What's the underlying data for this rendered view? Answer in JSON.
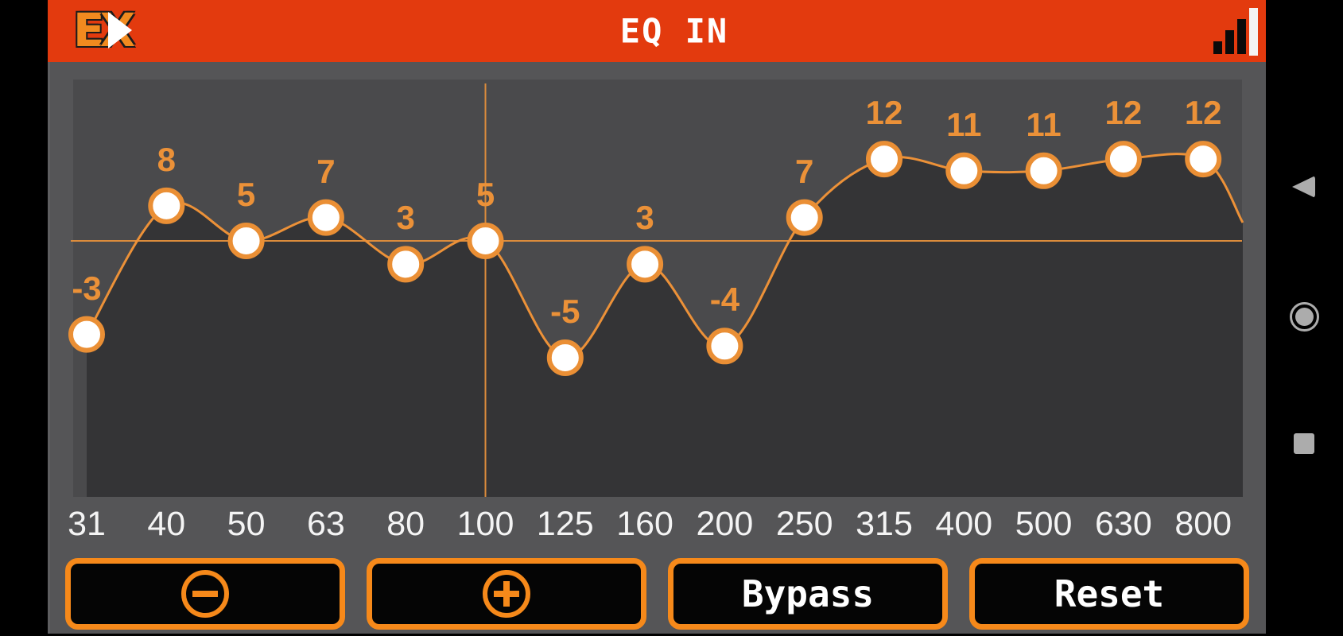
{
  "header": {
    "title": "EQ IN",
    "logo": {
      "left": "E",
      "right": "X"
    }
  },
  "chart_data": {
    "type": "line",
    "title": "EQ IN",
    "categories": [
      "31",
      "40",
      "50",
      "63",
      "80",
      "100",
      "125",
      "160",
      "200",
      "250",
      "315",
      "400",
      "500",
      "630",
      "800"
    ],
    "values": [
      -3,
      8,
      5,
      7,
      3,
      5,
      -5,
      3,
      -4,
      7,
      12,
      11,
      11,
      12,
      12
    ],
    "point_labels": [
      "-3",
      "8",
      "5",
      "7",
      "3",
      "5",
      "-5",
      "3",
      "-4",
      "7",
      "12",
      "11",
      "11",
      "12",
      "12"
    ],
    "selected_band": {
      "category": "100",
      "value": 5
    },
    "xlabel": "",
    "ylabel": "",
    "legend": "none",
    "grid": "off"
  },
  "controls": {
    "decrease_icon": "minus-circle-icon",
    "increase_icon": "plus-circle-icon",
    "bypass_label": "Bypass",
    "reset_label": "Reset"
  },
  "nav": {
    "back": "back-triangle-icon",
    "home": "home-circle-icon",
    "recents": "recents-square-icon"
  },
  "colors": {
    "header_red": "#E33A0E",
    "accent_orange": "#EC9138",
    "crosshair_orange": "#DC8C3C",
    "button_orange": "#F6891A",
    "plot_bg": "#4A4A4C",
    "under_curve_fill": "#343436",
    "body_bg": "#555557",
    "label_white": "#F4F4F4",
    "marker_fill": "#FFFFFF",
    "marker_stroke": "#EA8F35",
    "nav_icon_gray": "#ACACAC"
  }
}
